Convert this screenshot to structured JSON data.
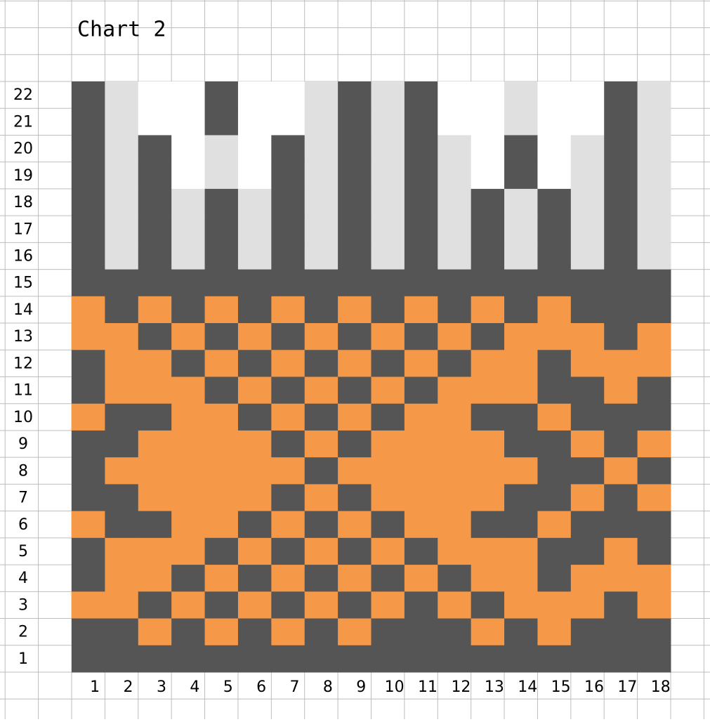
{
  "title": "Chart 2",
  "row_labels": [
    22,
    21,
    20,
    19,
    18,
    17,
    16,
    15,
    14,
    13,
    12,
    11,
    10,
    9,
    8,
    7,
    6,
    5,
    4,
    3,
    2,
    1
  ],
  "column_labels": [
    1,
    2,
    3,
    4,
    5,
    6,
    7,
    8,
    9,
    10,
    11,
    12,
    13,
    14,
    15,
    16,
    17,
    18
  ],
  "palette": {
    "D": "#555555",
    "O": "#f59848",
    "L": "#e0e0e0",
    "W": "#ffffff"
  },
  "rows": [
    "DLWWDWWLDLDWWLWWDL",
    "DLWWDWWLDLDWWLWWDL",
    "DLDWLWDLDLDLWDWLDL",
    "DLDWLWDLDLDLWDWLDL",
    "DLDLDLDLDLDLDLDLDL",
    "DLDLDLDLDLDLDLDLDL",
    "DLDLDLDLDLDLDLDLDL",
    "DDDDDDDDDDDDDDDDDD",
    "ODODODODODODODODDD",
    "OODODODODODODOOODO",
    "DOODODODODODOODOOO",
    "DOOODODODODOOODDOD",
    "ODDOODODODOODDODDD",
    "DDOOOODODOOOODDODO",
    "DOOOOOODOOOOOODDOD",
    "DDOOOODODOOOODDODO",
    "ODDOODODODOODDODDD",
    "DOOODODODODOOODDOD",
    "DOODODODODODOODOOO",
    "OODODODODODODOOODO",
    "DDODODODODDDODODDD",
    "DDDDDDDDDDDDDDDDDD"
  ]
}
